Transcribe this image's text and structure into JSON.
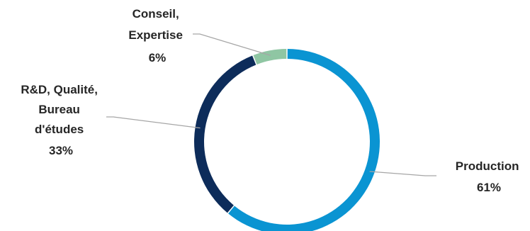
{
  "chart_data": {
    "type": "pie",
    "variant": "donut",
    "title": "",
    "categories": [
      "Production",
      "R&D, Qualité, Bureau d'études",
      "Conseil, Expertise"
    ],
    "values": [
      61,
      33,
      6
    ],
    "value_unit": "%",
    "colors": [
      "#0a94d2",
      "#0d2c5a",
      "#8fc6a3"
    ],
    "leader_line_color": "#a6a6a6",
    "legend": "none",
    "labels": [
      {
        "lines": [
          "Production"
        ],
        "value": "61%"
      },
      {
        "lines": [
          "R&D, Qualité,",
          "Bureau",
          "d'études"
        ],
        "value": "33%"
      },
      {
        "lines": [
          "Conseil,",
          "Expertise"
        ],
        "value": "6%"
      }
    ]
  }
}
